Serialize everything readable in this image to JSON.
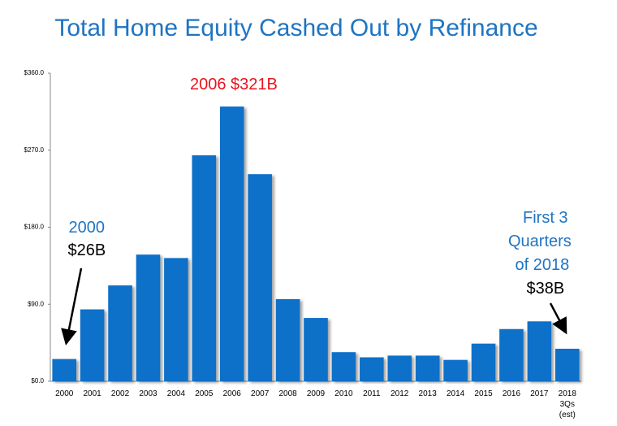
{
  "chart_data": {
    "type": "bar",
    "title": "Total Home Equity Cashed Out by Refinance",
    "categories": [
      "2000",
      "2001",
      "2002",
      "2003",
      "2004",
      "2005",
      "2006",
      "2007",
      "2008",
      "2009",
      "2010",
      "2011",
      "2012",
      "2013",
      "2014",
      "2015",
      "2016",
      "2017",
      "2018 3Qs (est)"
    ],
    "values": [
      26,
      84,
      112,
      148,
      144,
      264,
      321,
      242,
      96,
      74,
      34,
      28,
      30,
      30,
      25,
      44,
      61,
      70,
      38
    ],
    "color": "#0b6fc9",
    "ylim": [
      0,
      360
    ],
    "yticks": [
      {
        "value": 0,
        "label": "$0.0"
      },
      {
        "value": 90,
        "label": "$90.0"
      },
      {
        "value": 180,
        "label": "$180.0"
      },
      {
        "value": 270,
        "label": "$270.0"
      },
      {
        "value": 360,
        "label": "$360.0"
      }
    ],
    "grid": false,
    "annotations": [
      {
        "text": "2006 $321B",
        "color": "#e8141e"
      },
      {
        "text": "2000",
        "color": "#1e74c2"
      },
      {
        "text": "$26B",
        "color": "#000000"
      },
      {
        "text": "First 3",
        "color": "#1e74c2"
      },
      {
        "text": "Quarters",
        "color": "#1e74c2"
      },
      {
        "text": "of 2018",
        "color": "#1e74c2"
      },
      {
        "text": "$38B",
        "color": "#000000"
      }
    ]
  }
}
